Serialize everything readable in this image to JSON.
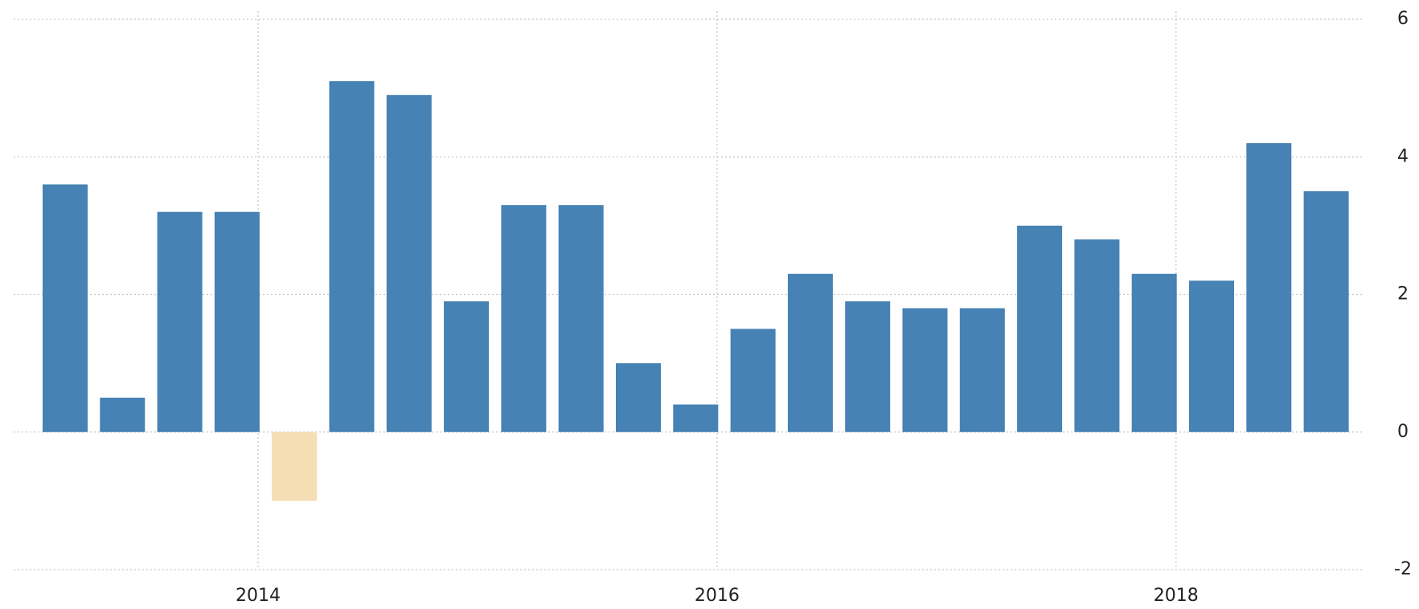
{
  "chart_data": {
    "type": "bar",
    "categories": [
      null,
      null,
      null,
      null,
      null,
      null,
      null,
      null,
      null,
      null,
      null,
      null,
      null,
      null,
      null,
      null,
      null,
      null,
      null,
      null,
      null,
      null,
      null
    ],
    "values": [
      3.6,
      0.5,
      3.2,
      3.2,
      -1.0,
      5.1,
      4.9,
      1.9,
      3.3,
      3.3,
      1.0,
      0.4,
      1.5,
      2.3,
      1.9,
      1.8,
      1.8,
      3.0,
      2.8,
      2.3,
      2.2,
      4.2,
      3.5
    ],
    "color": "#4682b4",
    "negative_color": "#f5deb3",
    "ylim": [
      -2,
      6
    ],
    "yticks": [
      -2,
      0,
      2,
      4,
      6
    ],
    "xlim": [
      2012.935,
      2018.81
    ],
    "xticks": [
      2014,
      2016,
      2018
    ],
    "grid": true
  }
}
